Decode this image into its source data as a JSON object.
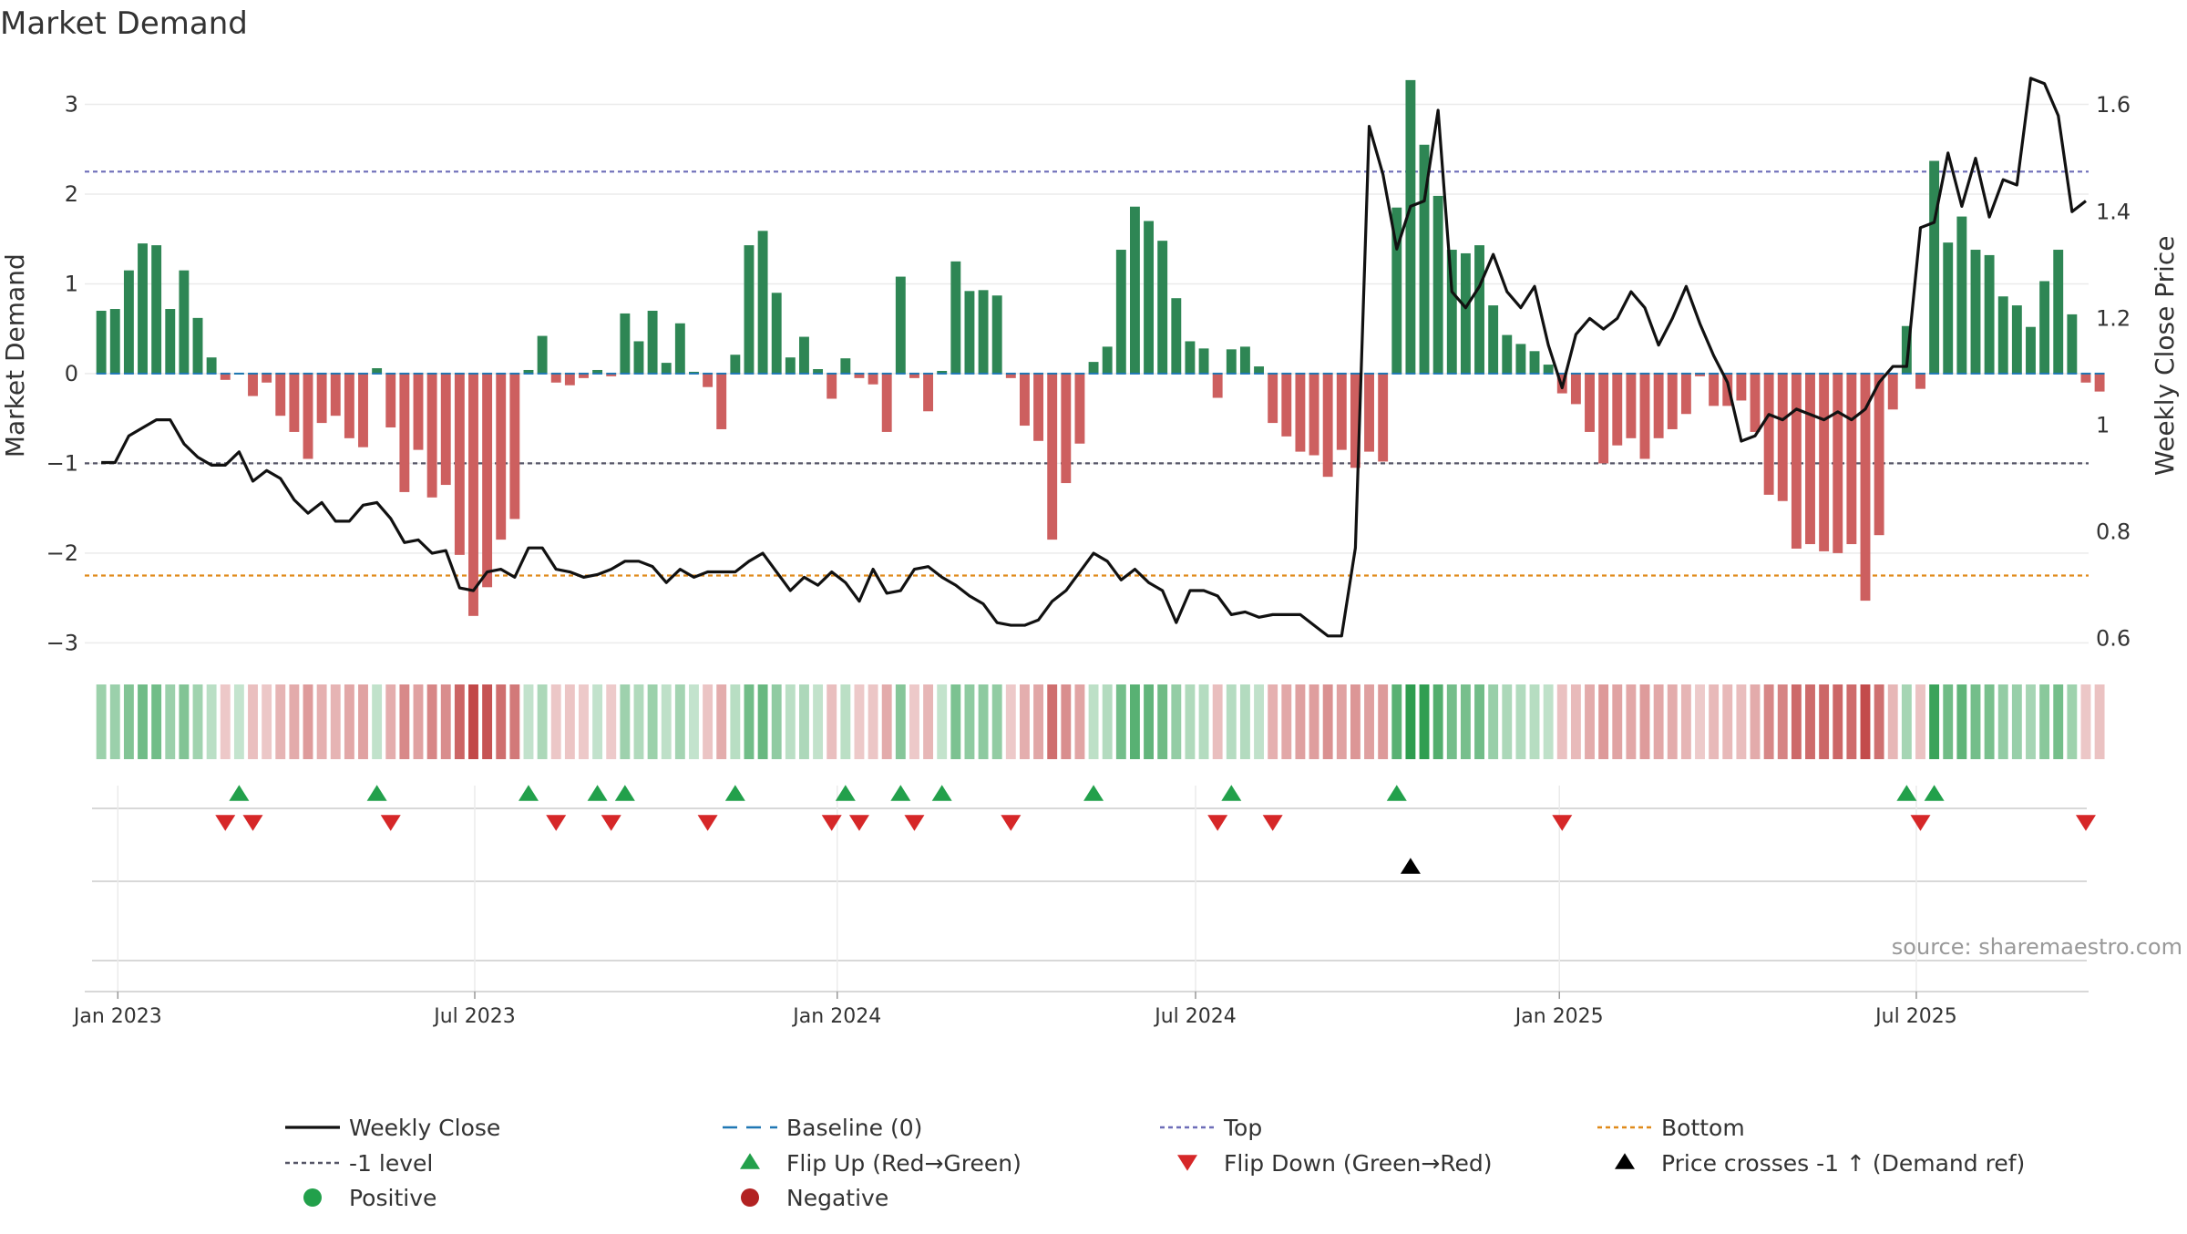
{
  "chart_data": {
    "type": "bar+line",
    "title": "Market Demand",
    "ylabel_left": "Market Demand",
    "ylabel_right": "Weekly Close Price",
    "ylim_left": [
      -3.25,
      3.35
    ],
    "ylim_right": [
      0.55,
      1.66
    ],
    "yticks_left": [
      {
        "v": 3,
        "t": "3"
      },
      {
        "v": 2,
        "t": "2"
      },
      {
        "v": 1,
        "t": "1"
      },
      {
        "v": 0,
        "t": "0"
      },
      {
        "v": -1,
        "t": "−1"
      },
      {
        "v": -2,
        "t": "−2"
      },
      {
        "v": -3,
        "t": "−3"
      }
    ],
    "yticks_right": [
      {
        "v": 1.6,
        "t": "1.6"
      },
      {
        "v": 1.4,
        "t": "1.4"
      },
      {
        "v": 1.2,
        "t": "1.2"
      },
      {
        "v": 1.0,
        "t": "1"
      },
      {
        "v": 0.8,
        "t": "0.8"
      },
      {
        "v": 0.6,
        "t": "0.6"
      }
    ],
    "xlim_weeks": [
      -1.2,
      144.2
    ],
    "x_ticks": [
      {
        "label": "Jan 2023",
        "week": 1.2
      },
      {
        "label": "Jul 2023",
        "week": 27.1
      },
      {
        "label": "Jan 2024",
        "week": 53.4
      },
      {
        "label": "Jul 2024",
        "week": 79.4
      },
      {
        "label": "Jan 2025",
        "week": 105.8
      },
      {
        "label": "Jul 2025",
        "week": 131.7
      }
    ],
    "levels": {
      "top": 2.25,
      "minus_one": -1,
      "bottom": -2.25,
      "baseline": 0
    },
    "demand": [
      0.7,
      0.72,
      1.15,
      1.45,
      1.43,
      0.72,
      1.15,
      0.62,
      0.18,
      -0.07,
      0,
      -0.25,
      -0.1,
      -0.47,
      -0.65,
      -0.95,
      -0.55,
      -0.47,
      -0.72,
      -0.82,
      0.06,
      -0.6,
      -1.32,
      -0.85,
      -1.38,
      -1.24,
      -2.02,
      -2.7,
      -2.38,
      -1.85,
      -1.62,
      0.04,
      0.42,
      -0.1,
      -0.13,
      -0.05,
      0.04,
      -0.03,
      0.67,
      0.36,
      0.7,
      0.12,
      0.56,
      0.02,
      -0.15,
      -0.62,
      0.21,
      1.43,
      1.59,
      0.9,
      0.18,
      0.41,
      0.05,
      -0.28,
      0.17,
      -0.05,
      -0.12,
      -0.65,
      1.08,
      -0.05,
      -0.42,
      0.03,
      1.25,
      0.92,
      0.93,
      0.87,
      -0.05,
      -0.58,
      -0.75,
      -1.85,
      -1.22,
      -0.78,
      0.13,
      0.3,
      1.38,
      1.86,
      1.7,
      1.48,
      0.84,
      0.36,
      0.28,
      -0.27,
      0.27,
      0.3,
      0.08,
      -0.55,
      -0.7,
      -0.87,
      -0.91,
      -1.15,
      -0.85,
      -1.05,
      -0.87,
      -0.98,
      1.85,
      3.27,
      2.55,
      1.98,
      1.38,
      1.34,
      1.43,
      0.76,
      0.43,
      0.33,
      0.25,
      0.1,
      -0.22,
      -0.34,
      -0.65,
      -1.0,
      -0.8,
      -0.72,
      -0.95,
      -0.72,
      -0.62,
      -0.45,
      -0.03,
      -0.36,
      -0.36,
      -0.3,
      -0.65,
      -1.35,
      -1.42,
      -1.95,
      -1.9,
      -1.98,
      -2.0,
      -1.9,
      -2.53,
      -1.8,
      -0.4,
      0.53,
      -0.17,
      2.37,
      1.46,
      1.75,
      1.38,
      1.32,
      0.86,
      0.76,
      0.52,
      1.03,
      1.38,
      0.66,
      -0.1,
      -0.2
    ],
    "close": [
      0.93,
      0.93,
      0.98,
      0.995,
      1.01,
      1.01,
      0.965,
      0.94,
      0.925,
      0.925,
      0.95,
      0.895,
      0.915,
      0.9,
      0.86,
      0.835,
      0.855,
      0.82,
      0.82,
      0.85,
      0.855,
      0.825,
      0.78,
      0.785,
      0.76,
      0.765,
      0.695,
      0.69,
      0.725,
      0.73,
      0.715,
      0.77,
      0.77,
      0.73,
      0.725,
      0.715,
      0.72,
      0.73,
      0.745,
      0.745,
      0.735,
      0.705,
      0.73,
      0.715,
      0.725,
      0.725,
      0.725,
      0.745,
      0.76,
      0.725,
      0.69,
      0.715,
      0.7,
      0.725,
      0.705,
      0.67,
      0.73,
      0.685,
      0.69,
      0.73,
      0.735,
      0.715,
      0.7,
      0.68,
      0.665,
      0.63,
      0.625,
      0.625,
      0.635,
      0.67,
      0.69,
      0.725,
      0.76,
      0.745,
      0.71,
      0.73,
      0.705,
      0.69,
      0.63,
      0.69,
      0.69,
      0.68,
      0.645,
      0.65,
      0.64,
      0.645,
      0.645,
      0.645,
      0.625,
      0.605,
      0.605,
      0.77,
      1.56,
      1.47,
      1.33,
      1.41,
      1.42,
      1.59,
      1.25,
      1.22,
      1.26,
      1.32,
      1.25,
      1.22,
      1.26,
      1.15,
      1.07,
      1.17,
      1.2,
      1.18,
      1.2,
      1.25,
      1.22,
      1.15,
      1.2,
      1.26,
      1.19,
      1.13,
      1.08,
      0.97,
      0.98,
      1.02,
      1.01,
      1.03,
      1.02,
      1.01,
      1.025,
      1.01,
      1.03,
      1.08,
      1.11,
      1.11,
      1.37,
      1.38,
      1.51,
      1.41,
      1.5,
      1.39,
      1.46,
      1.45,
      1.65,
      1.64,
      1.58,
      1.4,
      1.42
    ],
    "legend": [
      {
        "key": "weekly_close",
        "label": "Weekly Close"
      },
      {
        "key": "baseline",
        "label": "Baseline (0)"
      },
      {
        "key": "top",
        "label": "Top"
      },
      {
        "key": "bottom",
        "label": "Bottom"
      },
      {
        "key": "minus_one",
        "label": "-1 level"
      },
      {
        "key": "flip_up",
        "label": "Flip Up (Red→Green)"
      },
      {
        "key": "flip_down",
        "label": "Flip Down (Green→Red)"
      },
      {
        "key": "price_cross",
        "label": "Price crosses -1 ↑ (Demand ref)"
      },
      {
        "key": "positive",
        "label": "Positive"
      },
      {
        "key": "negative",
        "label": "Negative"
      }
    ]
  },
  "source_note": "source: sharemaestro.com",
  "colors": {
    "positive_bar": "#2e8654",
    "negative_bar": "#cd5f5f",
    "close_line": "#111111",
    "baseline": "#1f77b4",
    "top_line": "#6d6db8",
    "minus_one_line": "#555566",
    "bottom_line": "#e08a1a",
    "flip_up": "#22a04b",
    "flip_down": "#d62728",
    "price_cross": "#000000",
    "positive_dot": "#22a04b",
    "negative_dot": "#b22222"
  }
}
